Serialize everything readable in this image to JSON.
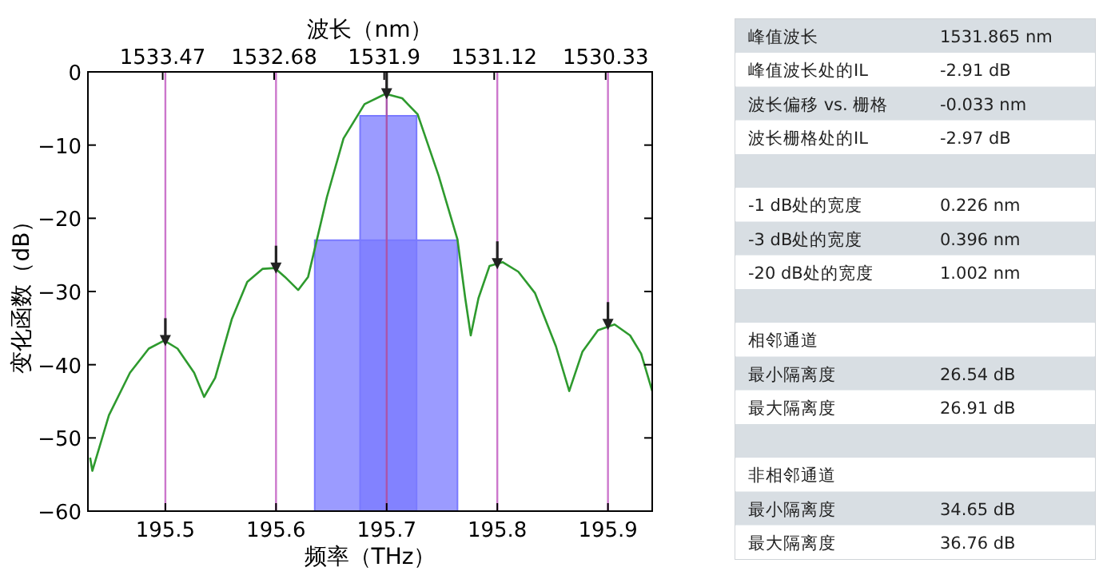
{
  "chart_data": [
    {
      "type": "line",
      "xlabel": "频率（THz）",
      "ylabel": "变化函数（dB）",
      "x2label": "波长（nm）",
      "xlim": [
        195.43,
        195.94
      ],
      "xticks": [
        195.5,
        195.6,
        195.7,
        195.8,
        195.9
      ],
      "x2lim": [
        1534.0,
        1530.0
      ],
      "x2ticks": [
        1533.47,
        1532.68,
        1531.9,
        1531.12,
        1530.33
      ],
      "ylim": [
        -60,
        0
      ],
      "yticks": [
        -60,
        -50,
        -40,
        -30,
        -20,
        -10,
        0
      ],
      "grid": false,
      "ref_lines": [
        {
          "axis": "x",
          "value": 195.5,
          "color": "#cc77cc"
        },
        {
          "axis": "x",
          "value": 195.6,
          "color": "#cc77cc"
        },
        {
          "axis": "x",
          "value": 195.7,
          "color": "#aa55aa"
        },
        {
          "axis": "x",
          "value": 195.8,
          "color": "#cc77cc"
        },
        {
          "axis": "x",
          "value": 195.9,
          "color": "#cc77cc"
        }
      ],
      "series": [
        {
          "type": "area",
          "color": "#7a7aff",
          "x": [
            195.635,
            195.635,
            195.764,
            195.764
          ],
          "values": [
            -60,
            -23,
            -23,
            -60
          ]
        },
        {
          "type": "area",
          "color": "#7a7aff",
          "x": [
            195.676,
            195.676,
            195.727,
            195.727
          ],
          "values": [
            -60,
            -6,
            -6,
            -60
          ]
        },
        {
          "type": "line",
          "color": "#2e9a2e",
          "x": [
            195.432,
            195.434,
            195.449,
            195.468,
            195.485,
            195.499,
            195.511,
            195.526,
            195.535,
            195.545,
            195.56,
            195.574,
            195.588,
            195.599,
            195.608,
            195.62,
            195.629,
            195.637,
            195.646,
            195.661,
            195.68,
            195.699,
            195.714,
            195.728,
            195.747,
            195.764,
            195.771,
            195.776,
            195.783,
            195.793,
            195.805,
            195.819,
            195.834,
            195.853,
            195.865,
            195.877,
            195.891,
            195.906,
            195.92,
            195.93,
            195.94
          ],
          "values": [
            -52.7,
            -54.5,
            -46.9,
            -41.1,
            -37.8,
            -36.7,
            -37.8,
            -41.1,
            -44.4,
            -41.8,
            -33.8,
            -28.7,
            -26.9,
            -26.8,
            -28,
            -29.8,
            -28,
            -22.9,
            -17.1,
            -9.1,
            -4.4,
            -3,
            -3.6,
            -5.8,
            -14.2,
            -22.9,
            -30.9,
            -36,
            -30.9,
            -26.5,
            -26,
            -27.3,
            -30.2,
            -37.5,
            -43.6,
            -38.2,
            -35.3,
            -34.5,
            -36,
            -38.5,
            -43.6
          ]
        },
        {
          "type": "scatter",
          "color": "#222222",
          "marker": "triangle",
          "x": [
            195.5,
            195.6,
            195.7,
            195.8,
            195.9
          ],
          "values": [
            -36.7,
            -26.8,
            -3,
            -26.2,
            -34.5
          ]
        }
      ]
    },
    {
      "type": "other",
      "cell_labels": [
        [
          "峰值波长",
          "1531.865 nm"
        ],
        [
          "峰值波长处的IL",
          "-2.91 dB"
        ],
        [
          "波长偏移 vs. 栅格",
          "-0.033 nm"
        ],
        [
          "波长栅格处的IL",
          "-2.97 dB"
        ],
        [
          null,
          null
        ],
        [
          "-1 dB处的宽度",
          "0.226 nm"
        ],
        [
          "-3 dB处的宽度",
          "0.396 nm"
        ],
        [
          "-20 dB处的宽度",
          "1.002 nm"
        ],
        [
          null,
          null
        ],
        [
          "相邻通道",
          null
        ],
        [
          "最小隔离度",
          "26.54 dB"
        ],
        [
          "最大隔离度",
          "26.91 dB"
        ],
        [
          null,
          null
        ],
        [
          "非相邻通道",
          null
        ],
        [
          "最小隔离度",
          "34.65 dB"
        ],
        [
          "最大隔离度",
          "36.76 dB"
        ]
      ]
    }
  ]
}
